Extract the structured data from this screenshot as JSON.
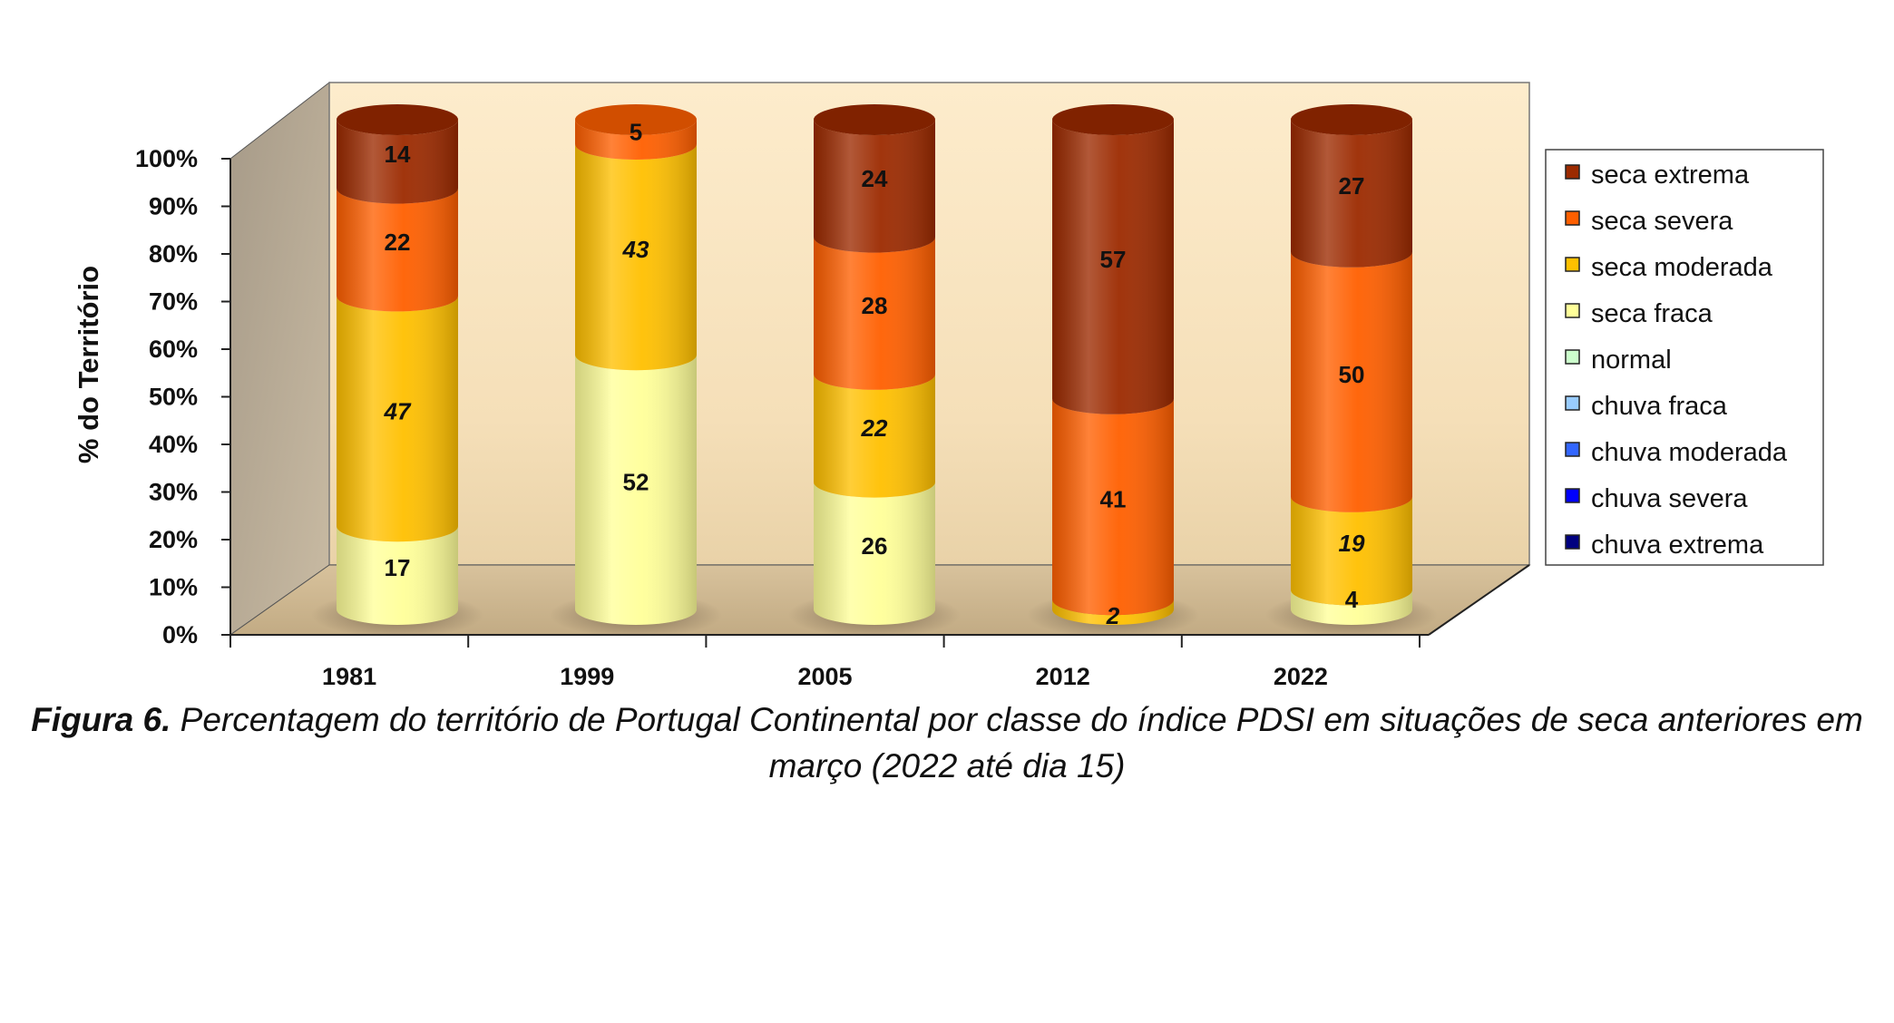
{
  "chart_data": {
    "type": "bar",
    "stacked": true,
    "three_d": true,
    "ylabel": "% do Território",
    "ylim": [
      0,
      100
    ],
    "yticks": [
      "0%",
      "10%",
      "20%",
      "30%",
      "40%",
      "50%",
      "60%",
      "70%",
      "80%",
      "90%",
      "100%"
    ],
    "categories": [
      "1981",
      "1999",
      "2005",
      "2012",
      "2022"
    ],
    "series": [
      {
        "name": "seca fraca",
        "color": "#ffff99",
        "values": [
          17,
          52,
          26,
          0,
          4
        ],
        "italic": false
      },
      {
        "name": "seca moderada",
        "color": "#ffc000",
        "values": [
          47,
          43,
          22,
          2,
          19
        ],
        "italic": true
      },
      {
        "name": "seca severa",
        "color": "#ff5f00",
        "values": [
          22,
          5,
          28,
          41,
          50
        ],
        "italic": false
      },
      {
        "name": "seca extrema",
        "color": "#9c2a00",
        "values": [
          14,
          0,
          24,
          57,
          27
        ],
        "italic": false
      }
    ],
    "legend": {
      "position": "right",
      "entries": [
        {
          "name": "seca extrema",
          "color": "#9c2a00"
        },
        {
          "name": "seca severa",
          "color": "#ff5f00"
        },
        {
          "name": "seca moderada",
          "color": "#ffc000"
        },
        {
          "name": "seca fraca",
          "color": "#ffff99"
        },
        {
          "name": "normal",
          "color": "#ccffcc"
        },
        {
          "name": "chuva fraca",
          "color": "#99ccff"
        },
        {
          "name": "chuva moderada",
          "color": "#3366ff"
        },
        {
          "name": "chuva severa",
          "color": "#0000ff"
        },
        {
          "name": "chuva extrema",
          "color": "#000080"
        }
      ]
    }
  },
  "caption": {
    "lead": "Figura 6.",
    "text": " Percentagem do território de Portugal Continental por classe do índice PDSI em situações de seca anteriores em março (2022 até dia 15)"
  }
}
